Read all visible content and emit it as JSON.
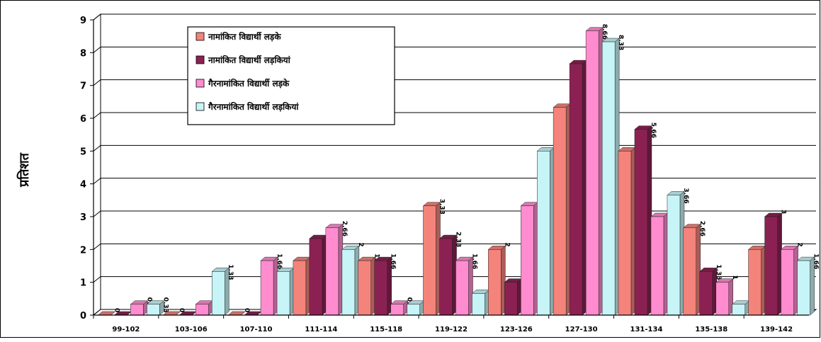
{
  "chart_data": {
    "type": "bar",
    "ylabel": "प्रतिशत",
    "xlabel": "",
    "title": "",
    "ylim": [
      0,
      9
    ],
    "yticks": [
      "0",
      "1",
      "2",
      "3",
      "4",
      "5",
      "6",
      "7",
      "8",
      "9"
    ],
    "grid": true,
    "legend_position": "top-left",
    "categories": [
      "99-102",
      "103-106",
      "107-110",
      "111-114",
      "115-118",
      "119-122",
      "123-126",
      "127-130",
      "131-134",
      "135-138",
      "139-142"
    ],
    "series": [
      {
        "name": "नामांकित विद्यार्थी लड़के",
        "color": "#f4837b",
        "values": [
          0,
          0,
          0,
          1.66,
          1.66,
          3.33,
          2,
          6.33,
          5,
          2.66,
          2
        ],
        "labels": [
          "0",
          "0",
          "0",
          "1.66",
          "1.66",
          "3.33",
          "2",
          "6.33",
          "5",
          "2.66",
          "2"
        ]
      },
      {
        "name": "नामांकित विद्यार्थी लड़कियां",
        "color": "#8b2152",
        "values": [
          0,
          0,
          0,
          2.33,
          1.66,
          2.33,
          1,
          7.66,
          5.66,
          1.33,
          3
        ],
        "labels": [
          "0",
          "0",
          "0",
          "2.33",
          "1.66",
          "2.33",
          "1",
          "7.66",
          "5.66",
          "1.33",
          "3"
        ]
      },
      {
        "name": "गैरनामांकित विद्यार्थी लड़के",
        "color": "#ff8ccf",
        "values": [
          0.33,
          0.33,
          1.66,
          2.66,
          0.33,
          1.66,
          3.33,
          8.66,
          3,
          1,
          2
        ],
        "labels": [
          "0.33",
          "0.33",
          "1.66",
          "2.66",
          "0.33",
          "1.66",
          "3.33",
          "8.66",
          "3",
          "1",
          "2"
        ]
      },
      {
        "name": "गैरनामांकित विद्यार्थी लड़कियां",
        "color": "#c7f4f7",
        "values": [
          0.33,
          1.33,
          1.33,
          2,
          0.33,
          0.66,
          5,
          8.33,
          3.66,
          0.33,
          1.66
        ],
        "labels": [
          "0.33",
          "1.33",
          "1.33",
          "2",
          "0.33",
          "0.66",
          "5",
          "8.33",
          "3.66",
          "0.33",
          "1.66"
        ]
      }
    ]
  },
  "colors": {
    "grid": "#000000",
    "wall": "#ffffff",
    "bar_outline": "#222222"
  }
}
